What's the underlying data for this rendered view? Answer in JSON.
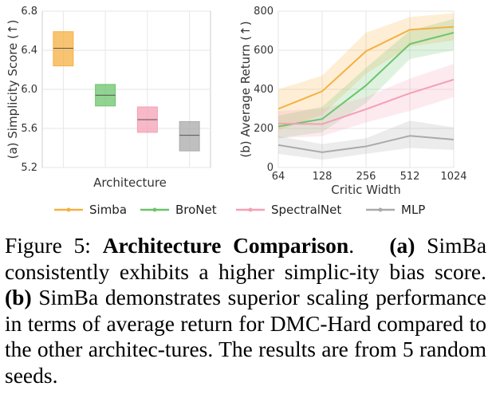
{
  "chart_data": [
    {
      "type": "box",
      "panel": "left",
      "ylabel": "(a) Simplicity Score (↑)",
      "xlabel": "Architecture",
      "ylim": [
        5.2,
        6.8
      ],
      "yticks": [
        "5.2",
        "5.6",
        "6.0",
        "6.4",
        "6.8"
      ],
      "grid": true,
      "boxes": [
        {
          "name": "Simba",
          "q1": 6.24,
          "median": 6.42,
          "q3": 6.59,
          "color": "#f5b041"
        },
        {
          "name": "BroNet",
          "q1": 5.83,
          "median": 5.94,
          "q3": 6.05,
          "color": "#6cc46c"
        },
        {
          "name": "SpectralNet",
          "q1": 5.56,
          "median": 5.69,
          "q3": 5.82,
          "color": "#f4a0b5"
        },
        {
          "name": "MLP",
          "q1": 5.37,
          "median": 5.53,
          "q3": 5.67,
          "color": "#aaaaaa"
        }
      ]
    },
    {
      "type": "line",
      "panel": "right",
      "ylabel": "(b) Average Return (↑)",
      "xlabel": "Critic Width",
      "x": [
        64,
        128,
        256,
        512,
        1024
      ],
      "xscale": "log2",
      "xticks": [
        "64",
        "128",
        "256",
        "512",
        "1024"
      ],
      "ylim": [
        0,
        800
      ],
      "yticks": [
        "0",
        "200",
        "400",
        "600",
        "800"
      ],
      "grid": true,
      "series": [
        {
          "name": "Simba",
          "color": "#f5b041",
          "values": [
            300,
            390,
            595,
            705,
            720
          ],
          "lower": [
            190,
            270,
            480,
            620,
            650
          ],
          "upper": [
            400,
            470,
            690,
            770,
            790
          ]
        },
        {
          "name": "BroNet",
          "color": "#6cc46c",
          "values": [
            210,
            248,
            420,
            632,
            690
          ],
          "lower": [
            150,
            180,
            330,
            555,
            600
          ],
          "upper": [
            265,
            310,
            510,
            700,
            760
          ]
        },
        {
          "name": "SpectralNet",
          "color": "#f4a0b5",
          "values": [
            225,
            222,
            298,
            380,
            450
          ],
          "lower": [
            150,
            160,
            230,
            290,
            360
          ],
          "upper": [
            290,
            300,
            360,
            455,
            530
          ]
        },
        {
          "name": "MLP",
          "color": "#aaaaaa",
          "values": [
            115,
            78,
            108,
            162,
            143
          ],
          "lower": [
            70,
            40,
            70,
            100,
            90
          ],
          "upper": [
            160,
            120,
            150,
            240,
            205
          ]
        }
      ]
    }
  ],
  "legend": [
    "Simba",
    "BroNet",
    "SpectralNet",
    "MLP"
  ],
  "caption": {
    "label": "Figure 5:",
    "title": "Architecture Comparison",
    "a_marker": "(a)",
    "a_text": "SimBa consistently exhibits a higher simplic-ity bias score.",
    "b_marker": "(b)",
    "b_text": "SimBa demonstrates superior scaling performance in terms of average return for DMC-Hard compared to the other architec-tures. The results are from 5 random seeds."
  }
}
